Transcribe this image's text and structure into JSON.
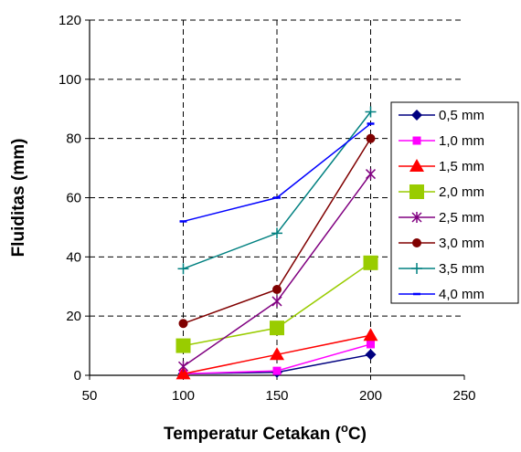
{
  "chart_data": {
    "type": "line",
    "xlabel": "Temperatur Cetakan (",
    "xlabel_sup": "o",
    "xlabel_unit": "C)",
    "ylabel": "Fluiditas (mm)",
    "xlim": [
      50,
      250
    ],
    "ylim": [
      0,
      120
    ],
    "xticks": [
      "50",
      "100",
      "150",
      "200",
      "250"
    ],
    "yticks": [
      "0",
      "20",
      "40",
      "60",
      "80",
      "100",
      "120"
    ],
    "grid": "dashed",
    "legend_position": "right",
    "x": [
      100,
      150,
      200
    ],
    "series": [
      {
        "name": "0,5 mm",
        "values": [
          0.5,
          1,
          7
        ],
        "color": "#000080",
        "marker": "diamond"
      },
      {
        "name": "1,0 mm",
        "values": [
          0.5,
          1.5,
          10.5
        ],
        "color": "#ff00ff",
        "marker": "square-small"
      },
      {
        "name": "1,5 mm",
        "values": [
          0.5,
          7,
          13.5
        ],
        "color": "#ff0000",
        "marker": "triangle"
      },
      {
        "name": "2,0 mm",
        "values": [
          10,
          16,
          38
        ],
        "color": "#99cc00",
        "marker": "square"
      },
      {
        "name": "2,5 mm",
        "values": [
          3,
          25,
          68
        ],
        "color": "#800080",
        "marker": "star"
      },
      {
        "name": "3,0 mm",
        "values": [
          17.5,
          29,
          80
        ],
        "color": "#800000",
        "marker": "circle"
      },
      {
        "name": "3,5 mm",
        "values": [
          36,
          48,
          89
        ],
        "color": "#008080",
        "marker": "plus"
      },
      {
        "name": "4,0 mm",
        "values": [
          52,
          60,
          85
        ],
        "color": "#0000ff",
        "marker": "dash"
      }
    ]
  }
}
